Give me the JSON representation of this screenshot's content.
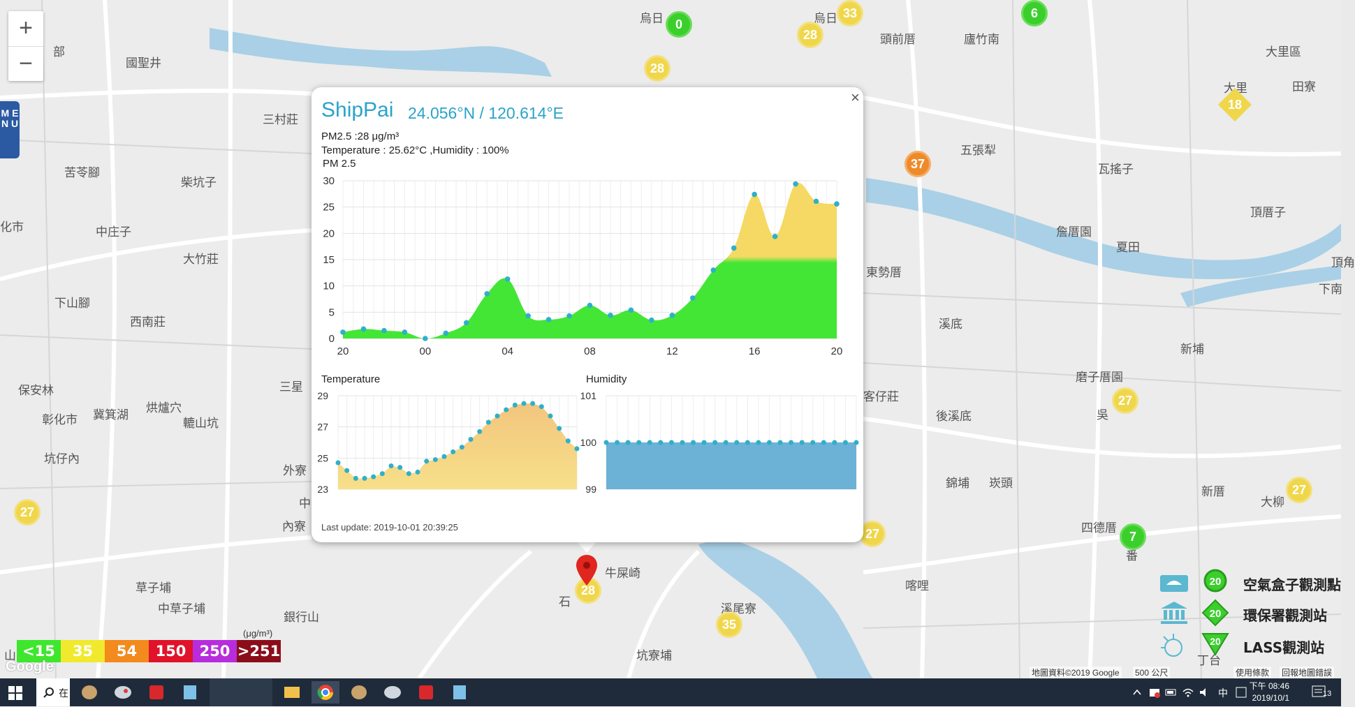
{
  "map": {
    "zoom_in_label": "+",
    "zoom_out_label": "−",
    "menu_label": "M E N U",
    "places": [
      {
        "name": "烏日",
        "x": 916,
        "y": 12
      },
      {
        "name": "烏日",
        "x": 1165,
        "y": 12
      },
      {
        "name": "頭前厝",
        "x": 1260,
        "y": 42
      },
      {
        "name": "廬竹南",
        "x": 1380,
        "y": 42
      },
      {
        "name": "大里區",
        "x": 1812,
        "y": 60
      },
      {
        "name": "田寮",
        "x": 1850,
        "y": 110
      },
      {
        "name": "大里",
        "x": 1752,
        "y": 112
      },
      {
        "name": "國聖井",
        "x": 180,
        "y": 76
      },
      {
        "name": "部",
        "x": 76,
        "y": 60
      },
      {
        "name": "三村莊",
        "x": 376,
        "y": 157
      },
      {
        "name": "五張犁",
        "x": 1375,
        "y": 201
      },
      {
        "name": "瓦搖子",
        "x": 1572,
        "y": 228
      },
      {
        "name": "頂厝子",
        "x": 1790,
        "y": 290
      },
      {
        "name": "苦苓腳",
        "x": 92,
        "y": 233
      },
      {
        "name": "柴坑子",
        "x": 259,
        "y": 247
      },
      {
        "name": "化市",
        "x": 0,
        "y": 311
      },
      {
        "name": "中庄子",
        "x": 137,
        "y": 318
      },
      {
        "name": "詹厝園",
        "x": 1512,
        "y": 318
      },
      {
        "name": "夏田",
        "x": 1598,
        "y": 340
      },
      {
        "name": "大竹莊",
        "x": 262,
        "y": 357
      },
      {
        "name": "頂角",
        "x": 1906,
        "y": 362
      },
      {
        "name": "東勢厝",
        "x": 1240,
        "y": 376
      },
      {
        "name": "下南",
        "x": 1888,
        "y": 400
      },
      {
        "name": "下山腳",
        "x": 78,
        "y": 420
      },
      {
        "name": "西南莊",
        "x": 186,
        "y": 447
      },
      {
        "name": "溪底",
        "x": 1344,
        "y": 450
      },
      {
        "name": "新埔",
        "x": 1690,
        "y": 486
      },
      {
        "name": "保安林",
        "x": 26,
        "y": 545
      },
      {
        "name": "磨子厝園",
        "x": 1540,
        "y": 526
      },
      {
        "name": "三星",
        "x": 400,
        "y": 540
      },
      {
        "name": "彰化市",
        "x": 60,
        "y": 587
      },
      {
        "name": "冀箕湖",
        "x": 133,
        "y": 580
      },
      {
        "name": "烘爐穴",
        "x": 209,
        "y": 570
      },
      {
        "name": "轆山坑",
        "x": 262,
        "y": 592
      },
      {
        "name": "客仔莊",
        "x": 1236,
        "y": 554
      },
      {
        "name": "後溪底",
        "x": 1340,
        "y": 582
      },
      {
        "name": "吳",
        "x": 1570,
        "y": 580
      },
      {
        "name": "坑仔內",
        "x": 63,
        "y": 643
      },
      {
        "name": "外寮",
        "x": 405,
        "y": 660
      },
      {
        "name": "錦埔",
        "x": 1354,
        "y": 678
      },
      {
        "name": "崁頭",
        "x": 1416,
        "y": 678
      },
      {
        "name": "新厝",
        "x": 1720,
        "y": 690
      },
      {
        "name": "中",
        "x": 428,
        "y": 707
      },
      {
        "name": "內寮",
        "x": 404,
        "y": 740
      },
      {
        "name": "大柳",
        "x": 1805,
        "y": 705
      },
      {
        "name": "四德厝",
        "x": 1548,
        "y": 742
      },
      {
        "name": "番",
        "x": 1612,
        "y": 782
      },
      {
        "name": "牛屎崎",
        "x": 866,
        "y": 807
      },
      {
        "name": "喀哩",
        "x": 1296,
        "y": 825
      },
      {
        "name": "草子埔",
        "x": 194,
        "y": 828
      },
      {
        "name": "中草子埔",
        "x": 226,
        "y": 858
      },
      {
        "name": "銀行山",
        "x": 406,
        "y": 870
      },
      {
        "name": "石",
        "x": 800,
        "y": 848
      },
      {
        "name": "溪尾寮",
        "x": 1032,
        "y": 858
      },
      {
        "name": "坑寮埔",
        "x": 911,
        "y": 925
      },
      {
        "name": "丁台",
        "x": 1714,
        "y": 932
      },
      {
        "name": "山",
        "x": 6,
        "y": 925
      }
    ],
    "markers": [
      {
        "type": "green",
        "value": "0",
        "x": 953,
        "y": 16,
        "d": 38
      },
      {
        "type": "yellow",
        "value": "33",
        "x": 1198,
        "y": 0,
        "d": 38
      },
      {
        "type": "green",
        "value": "6",
        "x": 1462,
        "y": 0,
        "d": 38
      },
      {
        "type": "yellow",
        "value": "28",
        "x": 1141,
        "y": 31,
        "d": 38
      },
      {
        "type": "yellow",
        "value": "28",
        "x": 922,
        "y": 79,
        "d": 38
      },
      {
        "type": "orange",
        "value": "37",
        "x": 1295,
        "y": 216,
        "d": 38
      },
      {
        "type": "yellow",
        "value": "27",
        "x": 1592,
        "y": 555,
        "d": 38
      },
      {
        "type": "yellow",
        "value": "27",
        "x": 1841,
        "y": 683,
        "d": 38
      },
      {
        "type": "yellow",
        "value": "27",
        "x": 20,
        "y": 715,
        "d": 38
      },
      {
        "type": "yellow",
        "value": "27",
        "x": 1230,
        "y": 746,
        "d": 38
      },
      {
        "type": "green",
        "value": "7",
        "x": 1603,
        "y": 750,
        "d": 38
      },
      {
        "type": "yellow",
        "value": "35",
        "x": 1025,
        "y": 876,
        "d": 38
      },
      {
        "type": "yellow",
        "value": "28",
        "x": 823,
        "y": 827,
        "d": 38
      }
    ],
    "diamond_marker": {
      "value": "18"
    },
    "legend_scale": [
      {
        "label": "<15",
        "color": "#3fe62e"
      },
      {
        "label": "35",
        "color": "#f1e92e"
      },
      {
        "label": "54",
        "color": "#f28a1e"
      },
      {
        "label": "150",
        "color": "#e0132a"
      },
      {
        "label": "250",
        "color": "#b72ddb"
      },
      {
        "label": ">251",
        "color": "#8a0e1a"
      }
    ],
    "legend_unit": "(μg/m³)",
    "google_logo": "Google",
    "attribution": "地圖資料©2019 Google",
    "scale_label": "500 公尺",
    "terms": "使用條款",
    "report": "回報地圖錯誤",
    "station_legend": [
      {
        "value": "20",
        "label": "空氣盒子觀測點"
      },
      {
        "value": "20",
        "label": "環保署觀測站"
      },
      {
        "value": "20",
        "label": "LASS觀測站"
      }
    ]
  },
  "popup": {
    "close": "×",
    "title": "ShipPai",
    "coords": "24.056°N / 120.614°E",
    "pm25": "PM2.5 :28 μg/m³",
    "temp_humidity": "Temperature : 25.62°C ,Humidity : 100%",
    "pm_chart_label": "PM 2.5",
    "temp_chart_label": "Temperature",
    "humidity_chart_label": "Humidity",
    "last_update": "Last update: 2019-10-01 20:39:25"
  },
  "chart_data": [
    {
      "type": "area",
      "title": "PM 2.5",
      "ylim": [
        0,
        30
      ],
      "y_ticks": [
        0,
        5,
        10,
        15,
        20,
        25,
        30
      ],
      "x_tick_labels": [
        "20",
        "00",
        "04",
        "08",
        "12",
        "16",
        "20"
      ],
      "x_ticks_at": [
        0,
        4,
        8,
        12,
        16,
        20,
        24
      ],
      "x": [
        0,
        1,
        2,
        3,
        4,
        5,
        6,
        7,
        8,
        9,
        10,
        11,
        12,
        13,
        14,
        15,
        16,
        17,
        18,
        19,
        20,
        21,
        22,
        23,
        24
      ],
      "values": [
        1.2,
        1.8,
        1.5,
        1.2,
        0,
        1,
        3,
        8.5,
        11.3,
        4.3,
        3.6,
        4.3,
        6.3,
        4.4,
        5.4,
        3.5,
        4.4,
        7.7,
        13,
        17.2,
        27.4,
        19.4,
        29.4,
        26.1,
        25.6
      ],
      "fill_threshold": 15,
      "colors": {
        "low": "#44e636",
        "mid": "#f5d964",
        "point": "#2fb0c9"
      },
      "grid": true
    },
    {
      "type": "area",
      "title": "Temperature",
      "ylim": [
        23,
        29
      ],
      "y_ticks": [
        23,
        25,
        27,
        29
      ],
      "values": [
        24.7,
        24.2,
        23.7,
        23.7,
        23.8,
        24,
        24.5,
        24.4,
        24,
        24.1,
        24.8,
        24.9,
        25.1,
        25.4,
        25.7,
        26.2,
        26.7,
        27.3,
        27.7,
        28.1,
        28.4,
        28.5,
        28.5,
        28.3,
        27.7,
        26.9,
        26.1,
        25.6
      ],
      "colors": {
        "fill": "#f2c57e",
        "point": "#2fb0c9"
      },
      "grid": true
    },
    {
      "type": "area",
      "title": "Humidity",
      "ylim": [
        99,
        101
      ],
      "y_ticks": [
        99,
        100,
        101
      ],
      "values": [
        100,
        100,
        100,
        100,
        100,
        100,
        100,
        100,
        100,
        100,
        100,
        100,
        100,
        100,
        100,
        100,
        100,
        100,
        100,
        100,
        100,
        100,
        100,
        100
      ],
      "colors": {
        "fill": "#6cb1d6",
        "point": "#2fb0c9"
      },
      "grid": true
    }
  ],
  "taskbar": {
    "search_label": "在",
    "time": "下午 08:46",
    "date": "2019/10/1",
    "ime_label": "中",
    "notification_count": "13"
  }
}
